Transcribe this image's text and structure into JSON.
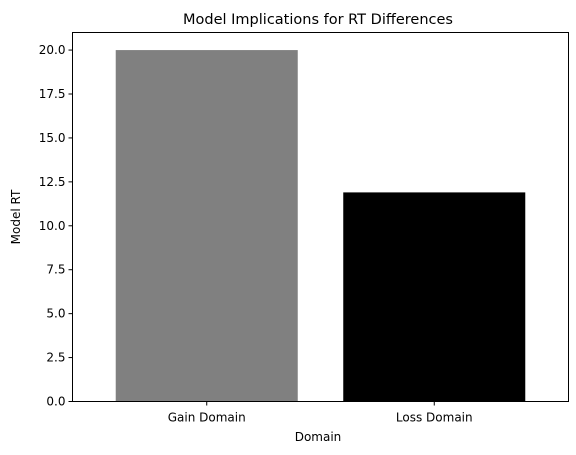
{
  "chart_data": {
    "type": "bar",
    "title": "Model Implications for RT Differences",
    "xlabel": "Domain",
    "ylabel": "Model RT",
    "categories": [
      "Gain Domain",
      "Loss Domain"
    ],
    "values": [
      20.0,
      11.9
    ],
    "colors": [
      "#808080",
      "#000000"
    ],
    "ylim": [
      0,
      21
    ],
    "yticks": [
      "0.0",
      "2.5",
      "5.0",
      "7.5",
      "10.0",
      "12.5",
      "15.0",
      "17.5",
      "20.0"
    ],
    "grid": false,
    "legend": "none"
  }
}
